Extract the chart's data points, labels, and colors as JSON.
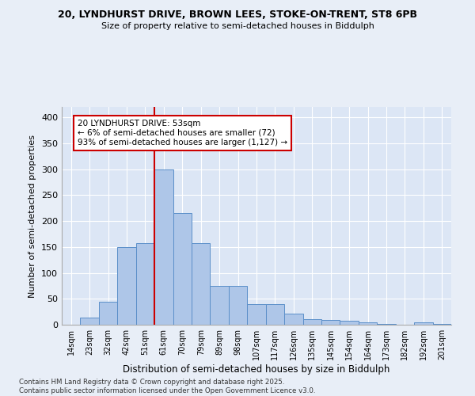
{
  "title1": "20, LYNDHURST DRIVE, BROWN LEES, STOKE-ON-TRENT, ST8 6PB",
  "title2": "Size of property relative to semi-detached houses in Biddulph",
  "xlabel": "Distribution of semi-detached houses by size in Biddulph",
  "ylabel": "Number of semi-detached properties",
  "bin_labels": [
    "14sqm",
    "23sqm",
    "32sqm",
    "42sqm",
    "51sqm",
    "61sqm",
    "70sqm",
    "79sqm",
    "89sqm",
    "98sqm",
    "107sqm",
    "117sqm",
    "126sqm",
    "135sqm",
    "145sqm",
    "154sqm",
    "164sqm",
    "173sqm",
    "182sqm",
    "192sqm",
    "201sqm"
  ],
  "bar_heights": [
    0,
    14,
    45,
    150,
    158,
    300,
    215,
    158,
    75,
    75,
    40,
    40,
    22,
    11,
    9,
    7,
    4,
    1,
    0,
    5,
    1
  ],
  "bar_color": "#aec6e8",
  "bar_edge_color": "#5b8fc9",
  "vline_x": 4.5,
  "vline_color": "#cc0000",
  "annotation_text": "20 LYNDHURST DRIVE: 53sqm\n← 6% of semi-detached houses are smaller (72)\n93% of semi-detached houses are larger (1,127) →",
  "annotation_box_color": "#ffffff",
  "annotation_box_edge": "#cc0000",
  "ylim": [
    0,
    420
  ],
  "yticks": [
    0,
    50,
    100,
    150,
    200,
    250,
    300,
    350,
    400
  ],
  "footer": "Contains HM Land Registry data © Crown copyright and database right 2025.\nContains public sector information licensed under the Open Government Licence v3.0.",
  "bg_color": "#e8eef7",
  "plot_bg_color": "#dce6f5"
}
